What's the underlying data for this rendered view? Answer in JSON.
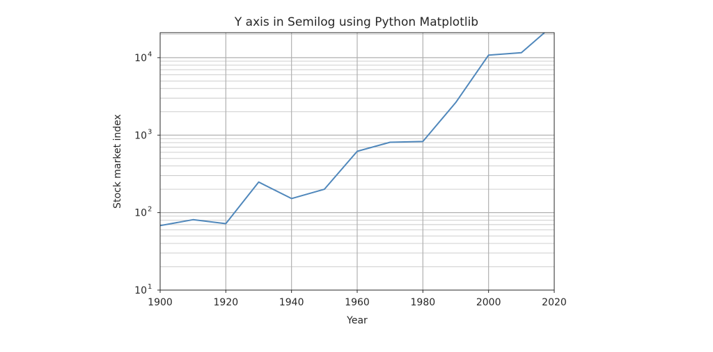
{
  "chart_data": {
    "type": "line",
    "title": "Y axis in Semilog using Python Matplotlib",
    "xlabel": "Year",
    "ylabel": "Stock market index",
    "xlim": [
      1900,
      2020
    ],
    "ylim": [
      10,
      21000
    ],
    "yscale": "log",
    "grid": "major and minor",
    "xticks": [
      "1900",
      "1920",
      "1940",
      "1960",
      "1980",
      "2000",
      "2020"
    ],
    "yticks": [
      {
        "base": "10",
        "exp": "1"
      },
      {
        "base": "10",
        "exp": "2"
      },
      {
        "base": "10",
        "exp": "3"
      },
      {
        "base": "10",
        "exp": "4"
      }
    ],
    "line_color": "#4f87bb",
    "series": [
      {
        "x": [
          1900,
          1910,
          1920,
          1930,
          1940,
          1950,
          1960,
          1970,
          1980,
          1990,
          2000,
          2010,
          2017
        ],
        "y": [
          68,
          81,
          72,
          248,
          152,
          200,
          618,
          809,
          828,
          2634,
          10787,
          11578,
          21000
        ]
      }
    ]
  }
}
